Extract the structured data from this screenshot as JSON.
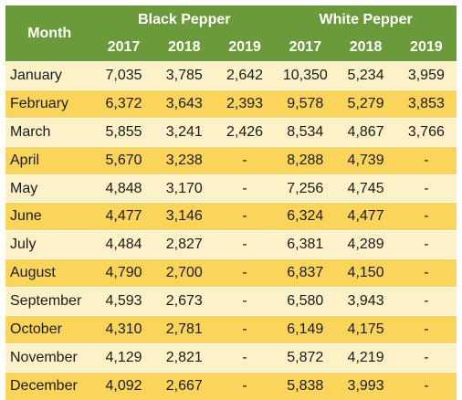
{
  "header": {
    "month_label": "Month",
    "groups": [
      "Black Pepper",
      "White Pepper"
    ],
    "years": [
      "2017",
      "2018",
      "2019",
      "2017",
      "2018",
      "2019"
    ]
  },
  "rows": [
    {
      "month": "January",
      "values": [
        "7,035",
        "3,785",
        "2,642",
        "10,350",
        "5,234",
        "3,959"
      ]
    },
    {
      "month": "February",
      "values": [
        "6,372",
        "3,643",
        "2,393",
        "9,578",
        "5,279",
        "3,853"
      ]
    },
    {
      "month": "March",
      "values": [
        "5,855",
        "3,241",
        "2,426",
        "8,534",
        "4,867",
        "3,766"
      ]
    },
    {
      "month": "April",
      "values": [
        "5,670",
        "3,238",
        "-",
        "8,288",
        "4,739",
        "-"
      ]
    },
    {
      "month": "May",
      "values": [
        "4,848",
        "3,170",
        "-",
        "7,256",
        "4,745",
        "-"
      ]
    },
    {
      "month": "June",
      "values": [
        "4,477",
        "3,146",
        "-",
        "6,324",
        "4,477",
        "-"
      ]
    },
    {
      "month": "July",
      "values": [
        "4,484",
        "2,827",
        "-",
        "6,381",
        "4,289",
        "-"
      ]
    },
    {
      "month": "August",
      "values": [
        "4,790",
        "2,700",
        "-",
        "6,837",
        "4,150",
        "-"
      ]
    },
    {
      "month": "September",
      "values": [
        "4,593",
        "2,673",
        "-",
        "6,580",
        "3,943",
        "-"
      ]
    },
    {
      "month": "October",
      "values": [
        "4,310",
        "2,781",
        "-",
        "6,149",
        "4,175",
        "-"
      ]
    },
    {
      "month": "November",
      "values": [
        "4,129",
        "2,821",
        "-",
        "5,872",
        "4,219",
        "-"
      ]
    },
    {
      "month": "December",
      "values": [
        "4,092",
        "2,667",
        "-",
        "5,838",
        "3,993",
        "-"
      ]
    }
  ],
  "colors": {
    "header_bg": "#6a9a3a",
    "header_text": "#ffffff",
    "row_light": "#fdf1c8",
    "row_dark": "#fad55a"
  }
}
